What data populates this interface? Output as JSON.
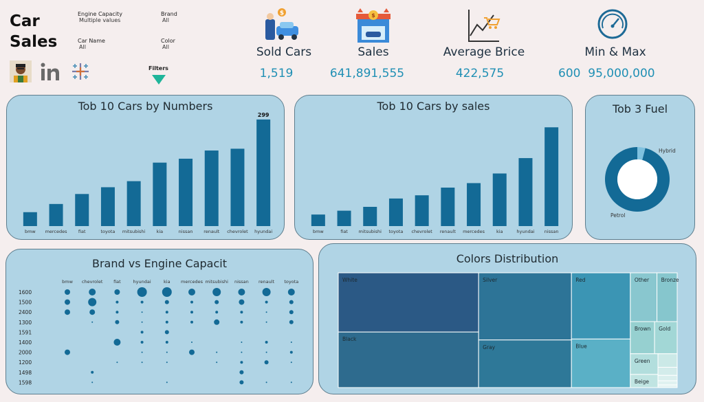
{
  "header": {
    "title_line1": "Car",
    "title_line2": "Sales",
    "filters": [
      {
        "label": "Engine Capacity",
        "value": "Multiple values"
      },
      {
        "label": "Brand",
        "value": "All"
      },
      {
        "label": "Car Name",
        "value": "All"
      },
      {
        "label": "Color",
        "value": "All"
      }
    ],
    "filters_button": "Filters"
  },
  "kpis": [
    {
      "label": "Sold Cars",
      "value": "1,519",
      "icon": "car-sale-icon"
    },
    {
      "label": "Sales",
      "value": "641,891,555",
      "icon": "car-shop-icon"
    },
    {
      "label": "Average Brice",
      "value": "422,575",
      "icon": "price-chart-icon"
    },
    {
      "label": "Min & Max",
      "value_min": "600",
      "value_max": "95,000,000",
      "icon": "speedometer-icon"
    }
  ],
  "colors": {
    "bar": "#136a96",
    "card": "#b0d4e5",
    "kpi_value": "#1f8fb4",
    "donut": "#136a96"
  },
  "chart_data": [
    {
      "id": "top10-numbers",
      "type": "bar",
      "title": "Tob 10 Cars by Numbers",
      "categories": [
        "bmw",
        "mercedes",
        "fiat",
        "toyota",
        "mitsubishi",
        "kia",
        "nissan",
        "renault",
        "chevrolet",
        "hyundai"
      ],
      "values": [
        39,
        62,
        90,
        109,
        126,
        178,
        189,
        212,
        217,
        299
      ],
      "data_labels": {
        "hyundai": "299"
      },
      "ylim": [
        0,
        320
      ]
    },
    {
      "id": "top10-sales",
      "type": "bar",
      "title": "Tob 10 Cars by sales",
      "categories": [
        "bmw",
        "fiat",
        "mitsubishi",
        "toyota",
        "chevrolet",
        "renault",
        "mercedes",
        "kia",
        "hyundai",
        "nissan"
      ],
      "values": [
        18,
        24,
        30,
        43,
        48,
        60,
        67,
        82,
        106,
        154
      ],
      "ylim": [
        0,
        165
      ]
    },
    {
      "id": "top3-fuel",
      "type": "pie",
      "title": "Tob 3 Fuel",
      "slices": [
        {
          "name": "Petrol",
          "value": 96
        },
        {
          "name": "Hybrid",
          "value": 4
        }
      ]
    },
    {
      "id": "brand-vs-engine",
      "type": "scatter",
      "title": "Brand vs Engine Capacit",
      "x": [
        "bmw",
        "chevrolet",
        "fiat",
        "hyundai",
        "kia",
        "mercedes",
        "mitsubishi",
        "nissan",
        "renault",
        "toyota"
      ],
      "y": [
        "1600",
        "1500",
        "2400",
        "1300",
        "1591",
        "1400",
        "2000",
        "1200",
        "1498",
        "1598"
      ],
      "points": [
        [
          "1600",
          "bmw",
          4
        ],
        [
          "1600",
          "chevrolet",
          5
        ],
        [
          "1600",
          "fiat",
          4
        ],
        [
          "1600",
          "hyundai",
          7
        ],
        [
          "1600",
          "kia",
          7
        ],
        [
          "1600",
          "mercedes",
          5
        ],
        [
          "1600",
          "mitsubishi",
          6
        ],
        [
          "1600",
          "nissan",
          5
        ],
        [
          "1600",
          "renault",
          6
        ],
        [
          "1600",
          "toyota",
          5
        ],
        [
          "1500",
          "bmw",
          4
        ],
        [
          "1500",
          "chevrolet",
          6
        ],
        [
          "1500",
          "fiat",
          2
        ],
        [
          "1500",
          "hyundai",
          2
        ],
        [
          "1500",
          "kia",
          3
        ],
        [
          "1500",
          "mercedes",
          2
        ],
        [
          "1500",
          "mitsubishi",
          3
        ],
        [
          "1500",
          "nissan",
          4
        ],
        [
          "1500",
          "renault",
          2
        ],
        [
          "1500",
          "toyota",
          3
        ],
        [
          "2400",
          "bmw",
          4
        ],
        [
          "2400",
          "chevrolet",
          4
        ],
        [
          "2400",
          "fiat",
          2
        ],
        [
          "2400",
          "hyundai",
          1
        ],
        [
          "2400",
          "kia",
          2
        ],
        [
          "2400",
          "mercedes",
          2
        ],
        [
          "2400",
          "mitsubishi",
          2
        ],
        [
          "2400",
          "nissan",
          2
        ],
        [
          "2400",
          "renault",
          1
        ],
        [
          "2400",
          "toyota",
          3
        ],
        [
          "1300",
          "chevrolet",
          1
        ],
        [
          "1300",
          "fiat",
          3
        ],
        [
          "1300",
          "hyundai",
          1
        ],
        [
          "1300",
          "kia",
          2
        ],
        [
          "1300",
          "mercedes",
          2
        ],
        [
          "1300",
          "mitsubishi",
          4
        ],
        [
          "1300",
          "nissan",
          2
        ],
        [
          "1300",
          "renault",
          1
        ],
        [
          "1300",
          "toyota",
          3
        ],
        [
          "1591",
          "hyundai",
          2
        ],
        [
          "1591",
          "kia",
          3
        ],
        [
          "1400",
          "fiat",
          5
        ],
        [
          "1400",
          "hyundai",
          2
        ],
        [
          "1400",
          "kia",
          2
        ],
        [
          "1400",
          "mercedes",
          1
        ],
        [
          "1400",
          "nissan",
          1
        ],
        [
          "1400",
          "renault",
          2
        ],
        [
          "1400",
          "toyota",
          1
        ],
        [
          "2000",
          "bmw",
          4
        ],
        [
          "2000",
          "hyundai",
          1
        ],
        [
          "2000",
          "kia",
          1
        ],
        [
          "2000",
          "mercedes",
          4
        ],
        [
          "2000",
          "mitsubishi",
          1
        ],
        [
          "2000",
          "nissan",
          1
        ],
        [
          "2000",
          "renault",
          1
        ],
        [
          "2000",
          "toyota",
          2
        ],
        [
          "1200",
          "fiat",
          1
        ],
        [
          "1200",
          "hyundai",
          1
        ],
        [
          "1200",
          "kia",
          1
        ],
        [
          "1200",
          "mitsubishi",
          1
        ],
        [
          "1200",
          "nissan",
          2
        ],
        [
          "1200",
          "renault",
          3
        ],
        [
          "1200",
          "toyota",
          1
        ],
        [
          "1498",
          "chevrolet",
          2
        ],
        [
          "1498",
          "nissan",
          3
        ],
        [
          "1598",
          "chevrolet",
          1
        ],
        [
          "1598",
          "kia",
          1
        ],
        [
          "1598",
          "nissan",
          3
        ],
        [
          "1598",
          "renault",
          1
        ],
        [
          "1598",
          "toyota",
          1
        ]
      ]
    },
    {
      "id": "colors-distribution",
      "type": "treemap",
      "title": "Colors Distribution",
      "tiles": [
        {
          "name": "White",
          "value": 320,
          "color": "#2b5985",
          "label": true
        },
        {
          "name": "Black",
          "value": 300,
          "color": "#2e6b8e",
          "label": true
        },
        {
          "name": "Silver",
          "value": 240,
          "color": "#2d7497",
          "label": true
        },
        {
          "name": "Gray",
          "value": 170,
          "color": "#2e7898",
          "label": true
        },
        {
          "name": "Red",
          "value": 150,
          "color": "#3b95b4",
          "label": true
        },
        {
          "name": "Blue",
          "value": 110,
          "color": "#5ab0c6",
          "label": true
        },
        {
          "name": "Other",
          "value": 50,
          "color": "#89c7cf",
          "label": true
        },
        {
          "name": "Bronze",
          "value": 38,
          "color": "#86c6cd",
          "label": true
        },
        {
          "name": "Brown",
          "value": 30,
          "color": "#96d0d0",
          "label": true
        },
        {
          "name": "Gold",
          "value": 28,
          "color": "#a2d7d6",
          "label": true
        },
        {
          "name": "Green",
          "value": 22,
          "color": "#b2dedd",
          "label": true
        },
        {
          "name": "Beige",
          "value": 14,
          "color": "#c0e4e2",
          "label": true
        },
        {
          "name": "",
          "value": 10,
          "color": "#cbe9e7",
          "label": false
        },
        {
          "name": "",
          "value": 6,
          "color": "#d3eceb",
          "label": false
        },
        {
          "name": "",
          "value": 4,
          "color": "#daefee",
          "label": false
        },
        {
          "name": "",
          "value": 3,
          "color": "#dff1f0",
          "label": false
        },
        {
          "name": "",
          "value": 2,
          "color": "#e4f3f2",
          "label": false
        }
      ]
    }
  ]
}
